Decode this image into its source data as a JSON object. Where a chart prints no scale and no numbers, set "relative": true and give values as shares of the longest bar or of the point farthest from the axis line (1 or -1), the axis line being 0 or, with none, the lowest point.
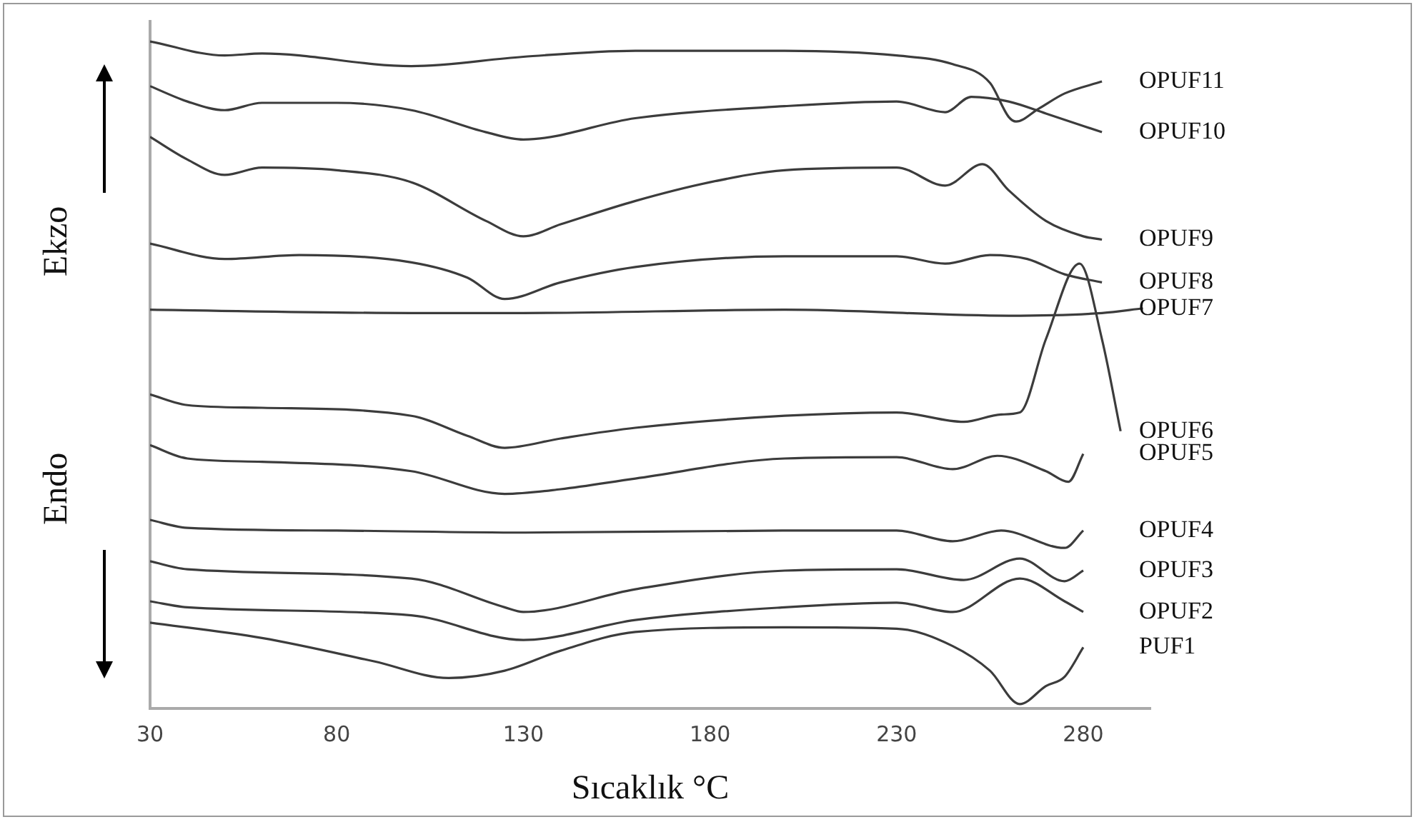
{
  "chart_data": {
    "type": "line",
    "relative": true,
    "xlabel": "Sıcaklık °C",
    "annotations": [
      "Ekzo",
      "Endo"
    ],
    "xlim": [
      30,
      298
    ],
    "xticks": [
      30,
      80,
      130,
      180,
      230,
      280
    ],
    "series": [
      {
        "name": "OPUF11",
        "color": "#3c3c3c",
        "x": [
          30,
          50,
          60,
          100,
          130,
          160,
          200,
          230,
          245,
          255,
          260,
          262,
          268,
          275,
          285
        ],
        "values": [
          1.0,
          0.979,
          0.982,
          0.963,
          0.977,
          0.986,
          0.986,
          0.979,
          0.966,
          0.938,
          0.887,
          0.88,
          0.899,
          0.922,
          0.94
        ]
      },
      {
        "name": "OPUF10",
        "color": "#3c3c3c",
        "x": [
          30,
          40,
          50,
          60,
          80,
          100,
          120,
          130,
          160,
          200,
          230,
          243,
          250,
          260,
          270,
          285
        ],
        "values": [
          0.933,
          0.91,
          0.897,
          0.908,
          0.908,
          0.897,
          0.864,
          0.853,
          0.885,
          0.903,
          0.91,
          0.894,
          0.917,
          0.91,
          0.892,
          0.864
        ]
      },
      {
        "name": "OPUF9",
        "color": "#3c3c3c",
        "x": [
          30,
          40,
          50,
          60,
          80,
          100,
          120,
          130,
          140,
          160,
          180,
          200,
          230,
          243,
          253,
          260,
          270,
          280,
          285
        ],
        "values": [
          0.857,
          0.823,
          0.8,
          0.811,
          0.807,
          0.789,
          0.731,
          0.708,
          0.726,
          0.761,
          0.789,
          0.807,
          0.811,
          0.784,
          0.816,
          0.777,
          0.731,
          0.708,
          0.703
        ]
      },
      {
        "name": "OPUF8",
        "color": "#3c3c3c",
        "x": [
          30,
          50,
          70,
          100,
          115,
          125,
          140,
          160,
          200,
          230,
          243,
          255,
          265,
          275,
          285
        ],
        "values": [
          0.697,
          0.674,
          0.68,
          0.669,
          0.646,
          0.614,
          0.639,
          0.662,
          0.678,
          0.678,
          0.667,
          0.68,
          0.674,
          0.651,
          0.639
        ]
      },
      {
        "name": "OPUF7",
        "color": "#3c3c3c",
        "x": [
          30,
          100,
          130,
          200,
          260,
          285,
          296
        ],
        "values": [
          0.598,
          0.593,
          0.593,
          0.598,
          0.589,
          0.593,
          0.6
        ]
      },
      {
        "name": "OPUF6",
        "color": "#3c3c3c",
        "x": [
          30,
          40,
          60,
          100,
          115,
          125,
          140,
          160,
          200,
          230,
          248,
          258,
          263,
          270,
          279,
          285,
          290
        ],
        "values": [
          0.471,
          0.455,
          0.451,
          0.439,
          0.409,
          0.391,
          0.405,
          0.421,
          0.439,
          0.444,
          0.43,
          0.441,
          0.444,
          0.554,
          0.667,
          0.554,
          0.416
        ]
      },
      {
        "name": "OPUF5",
        "color": "#3c3c3c",
        "x": [
          30,
          40,
          60,
          100,
          125,
          140,
          160,
          200,
          230,
          245,
          257,
          270,
          276,
          280
        ],
        "values": [
          0.395,
          0.375,
          0.37,
          0.356,
          0.322,
          0.329,
          0.345,
          0.375,
          0.377,
          0.359,
          0.379,
          0.356,
          0.34,
          0.382
        ]
      },
      {
        "name": "OPUF4",
        "color": "#3c3c3c",
        "x": [
          30,
          40,
          80,
          130,
          200,
          230,
          245,
          258,
          275,
          280
        ],
        "values": [
          0.283,
          0.271,
          0.267,
          0.264,
          0.267,
          0.267,
          0.251,
          0.267,
          0.241,
          0.267
        ]
      },
      {
        "name": "OPUF3",
        "color": "#3c3c3c",
        "x": [
          30,
          40,
          100,
          125,
          130,
          160,
          200,
          230,
          248,
          263,
          275,
          280
        ],
        "values": [
          0.221,
          0.209,
          0.195,
          0.152,
          0.145,
          0.179,
          0.207,
          0.209,
          0.193,
          0.225,
          0.191,
          0.207
        ]
      },
      {
        "name": "OPUF2",
        "color": "#3c3c3c",
        "x": [
          30,
          40,
          100,
          130,
          160,
          200,
          230,
          245,
          263,
          275,
          280
        ],
        "values": [
          0.161,
          0.152,
          0.14,
          0.103,
          0.133,
          0.152,
          0.159,
          0.145,
          0.195,
          0.161,
          0.145
        ]
      },
      {
        "name": "PUF1",
        "color": "#3c3c3c",
        "x": [
          30,
          60,
          90,
          110,
          125,
          140,
          160,
          200,
          230,
          245,
          255,
          263,
          270,
          275,
          280
        ],
        "values": [
          0.129,
          0.106,
          0.071,
          0.046,
          0.057,
          0.087,
          0.115,
          0.122,
          0.12,
          0.094,
          0.057,
          0.007,
          0.034,
          0.048,
          0.092
        ]
      }
    ]
  }
}
